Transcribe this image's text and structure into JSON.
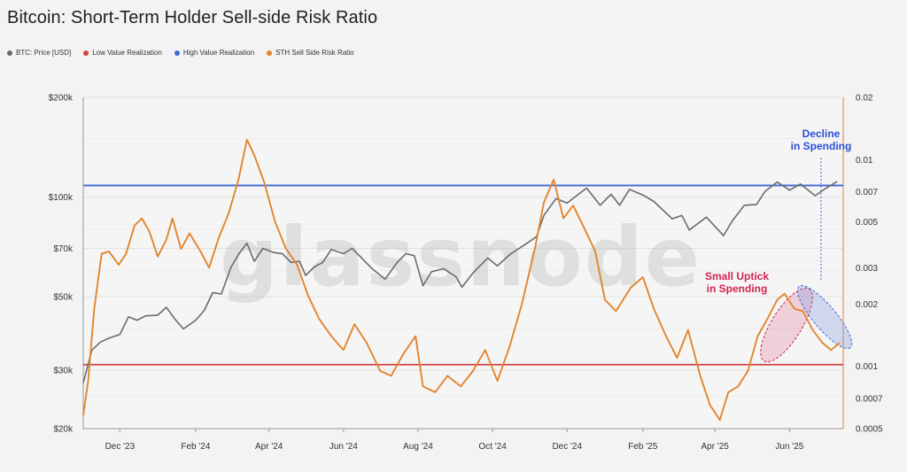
{
  "chart_data": {
    "type": "line",
    "title": "Bitcoin: Short-Term Holder Sell-side Risk Ratio",
    "legend": [
      {
        "name": "BTC: Price [USD]",
        "color": "#6b6b6b"
      },
      {
        "name": "Low Value Realization",
        "color": "#d24242"
      },
      {
        "name": "High Value Realization",
        "color": "#3f67d4"
      },
      {
        "name": "STH Sell Side Risk Ratio",
        "color": "#e3852d"
      }
    ],
    "legend_placement": "top-left",
    "watermark": "glassnode",
    "x_axis": {
      "start": "2023-11-01",
      "end": "2025-07-15",
      "ticks": [
        {
          "date": "2023-12-01",
          "label": "Dec '23"
        },
        {
          "date": "2024-02-01",
          "label": "Feb '24"
        },
        {
          "date": "2024-04-01",
          "label": "Apr '24"
        },
        {
          "date": "2024-06-01",
          "label": "Jun '24"
        },
        {
          "date": "2024-08-01",
          "label": "Aug '24"
        },
        {
          "date": "2024-10-01",
          "label": "Oct '24"
        },
        {
          "date": "2024-12-01",
          "label": "Dec '24"
        },
        {
          "date": "2025-02-01",
          "label": "Feb '25"
        },
        {
          "date": "2025-04-01",
          "label": "Apr '25"
        },
        {
          "date": "2025-06-01",
          "label": "Jun '25"
        }
      ]
    },
    "y_left": {
      "scale": "log",
      "min": 20000,
      "max": 200000,
      "ticks": [
        {
          "value": 20000,
          "label": "$20k"
        },
        {
          "value": 30000,
          "label": "$30k"
        },
        {
          "value": 50000,
          "label": "$50k"
        },
        {
          "value": 70000,
          "label": "$70k"
        },
        {
          "value": 100000,
          "label": "$100k"
        },
        {
          "value": 200000,
          "label": "$200k"
        }
      ]
    },
    "y_right": {
      "scale": "log",
      "min": 0.0005,
      "max": 0.02,
      "ticks": [
        {
          "value": 0.0005,
          "label": "0.0005"
        },
        {
          "value": 0.0007,
          "label": "0.0007"
        },
        {
          "value": 0.001,
          "label": "0.001"
        },
        {
          "value": 0.002,
          "label": "0.002"
        },
        {
          "value": 0.003,
          "label": "0.003"
        },
        {
          "value": 0.005,
          "label": "0.005"
        },
        {
          "value": 0.007,
          "label": "0.007"
        },
        {
          "value": 0.01,
          "label": "0.01"
        },
        {
          "value": 0.02,
          "label": "0.02"
        }
      ]
    },
    "thresholds": [
      {
        "name": "High Value Realization",
        "axis": "right",
        "value": 0.0075,
        "color": "#3f67d4"
      },
      {
        "name": "Low Value Realization",
        "axis": "right",
        "value": 0.00102,
        "color": "#d24242"
      }
    ],
    "series": [
      {
        "name": "BTC: Price [USD]",
        "axis": "left",
        "color": "#6b6b6b",
        "points": [
          [
            "2023-11-01",
            27500
          ],
          [
            "2023-11-08",
            34500
          ],
          [
            "2023-11-15",
            36500
          ],
          [
            "2023-11-22",
            37500
          ],
          [
            "2023-12-01",
            38500
          ],
          [
            "2023-12-08",
            43500
          ],
          [
            "2023-12-15",
            42500
          ],
          [
            "2023-12-22",
            43800
          ],
          [
            "2024-01-01",
            44000
          ],
          [
            "2024-01-08",
            46500
          ],
          [
            "2024-01-15",
            42800
          ],
          [
            "2024-01-22",
            40000
          ],
          [
            "2024-02-01",
            42500
          ],
          [
            "2024-02-08",
            45500
          ],
          [
            "2024-02-15",
            51500
          ],
          [
            "2024-02-22",
            51000
          ],
          [
            "2024-03-01",
            61500
          ],
          [
            "2024-03-08",
            68000
          ],
          [
            "2024-03-14",
            72500
          ],
          [
            "2024-03-20",
            64000
          ],
          [
            "2024-03-27",
            70000
          ],
          [
            "2024-04-05",
            68000
          ],
          [
            "2024-04-12",
            67500
          ],
          [
            "2024-04-19",
            63500
          ],
          [
            "2024-04-26",
            64000
          ],
          [
            "2024-05-01",
            58000
          ],
          [
            "2024-05-08",
            61500
          ],
          [
            "2024-05-15",
            63500
          ],
          [
            "2024-05-22",
            69500
          ],
          [
            "2024-06-01",
            67500
          ],
          [
            "2024-06-08",
            70000
          ],
          [
            "2024-06-15",
            66000
          ],
          [
            "2024-06-24",
            61000
          ],
          [
            "2024-07-05",
            56500
          ],
          [
            "2024-07-15",
            63500
          ],
          [
            "2024-07-22",
            67500
          ],
          [
            "2024-07-29",
            66500
          ],
          [
            "2024-08-05",
            54000
          ],
          [
            "2024-08-12",
            59500
          ],
          [
            "2024-08-22",
            60800
          ],
          [
            "2024-09-01",
            57500
          ],
          [
            "2024-09-06",
            53500
          ],
          [
            "2024-09-15",
            59000
          ],
          [
            "2024-09-27",
            65500
          ],
          [
            "2024-10-05",
            62000
          ],
          [
            "2024-10-15",
            67000
          ],
          [
            "2024-10-29",
            72500
          ],
          [
            "2024-11-06",
            76000
          ],
          [
            "2024-11-12",
            88000
          ],
          [
            "2024-11-22",
            99000
          ],
          [
            "2024-12-01",
            96000
          ],
          [
            "2024-12-08",
            100500
          ],
          [
            "2024-12-17",
            106500
          ],
          [
            "2024-12-28",
            94500
          ],
          [
            "2025-01-06",
            102000
          ],
          [
            "2025-01-13",
            94500
          ],
          [
            "2025-01-21",
            105500
          ],
          [
            "2025-02-01",
            101500
          ],
          [
            "2025-02-10",
            97000
          ],
          [
            "2025-02-25",
            86000
          ],
          [
            "2025-03-05",
            88000
          ],
          [
            "2025-03-11",
            79500
          ],
          [
            "2025-03-25",
            87000
          ],
          [
            "2025-04-08",
            76500
          ],
          [
            "2025-04-15",
            84500
          ],
          [
            "2025-04-25",
            94500
          ],
          [
            "2025-05-05",
            95000
          ],
          [
            "2025-05-12",
            104000
          ],
          [
            "2025-05-22",
            111000
          ],
          [
            "2025-06-01",
            105000
          ],
          [
            "2025-06-10",
            109500
          ],
          [
            "2025-06-22",
            101000
          ],
          [
            "2025-07-01",
            106500
          ],
          [
            "2025-07-10",
            111500
          ]
        ]
      },
      {
        "name": "STH Sell Side Risk Ratio",
        "axis": "right",
        "color": "#e3852d",
        "points": [
          [
            "2023-11-01",
            0.00058
          ],
          [
            "2023-11-05",
            0.00085
          ],
          [
            "2023-11-10",
            0.0019
          ],
          [
            "2023-11-16",
            0.0035
          ],
          [
            "2023-11-22",
            0.0036
          ],
          [
            "2023-11-30",
            0.0031
          ],
          [
            "2023-12-06",
            0.0035
          ],
          [
            "2023-12-13",
            0.0048
          ],
          [
            "2023-12-19",
            0.0052
          ],
          [
            "2023-12-25",
            0.0045
          ],
          [
            "2024-01-01",
            0.0034
          ],
          [
            "2024-01-08",
            0.0041
          ],
          [
            "2024-01-13",
            0.0052
          ],
          [
            "2024-01-20",
            0.0037
          ],
          [
            "2024-01-27",
            0.0044
          ],
          [
            "2024-02-05",
            0.0036
          ],
          [
            "2024-02-12",
            0.003
          ],
          [
            "2024-02-20",
            0.0042
          ],
          [
            "2024-02-28",
            0.0055
          ],
          [
            "2024-03-07",
            0.008
          ],
          [
            "2024-03-14",
            0.0125
          ],
          [
            "2024-03-20",
            0.0105
          ],
          [
            "2024-03-28",
            0.0078
          ],
          [
            "2024-04-06",
            0.005
          ],
          [
            "2024-04-15",
            0.0037
          ],
          [
            "2024-04-24",
            0.0031
          ],
          [
            "2024-05-03",
            0.0022
          ],
          [
            "2024-05-12",
            0.0017
          ],
          [
            "2024-05-22",
            0.0014
          ],
          [
            "2024-06-01",
            0.0012
          ],
          [
            "2024-06-10",
            0.0016
          ],
          [
            "2024-06-20",
            0.0013
          ],
          [
            "2024-07-01",
            0.00095
          ],
          [
            "2024-07-10",
            0.0009
          ],
          [
            "2024-07-20",
            0.00115
          ],
          [
            "2024-07-30",
            0.0014
          ],
          [
            "2024-08-05",
            0.0008
          ],
          [
            "2024-08-15",
            0.00075
          ],
          [
            "2024-08-25",
            0.0009
          ],
          [
            "2024-09-05",
            0.0008
          ],
          [
            "2024-09-15",
            0.00095
          ],
          [
            "2024-09-25",
            0.0012
          ],
          [
            "2024-10-05",
            0.00085
          ],
          [
            "2024-10-15",
            0.00125
          ],
          [
            "2024-10-25",
            0.002
          ],
          [
            "2024-11-05",
            0.0038
          ],
          [
            "2024-11-12",
            0.0062
          ],
          [
            "2024-11-20",
            0.008
          ],
          [
            "2024-11-28",
            0.0052
          ],
          [
            "2024-12-06",
            0.006
          ],
          [
            "2024-12-14",
            0.0048
          ],
          [
            "2024-12-24",
            0.0036
          ],
          [
            "2025-01-01",
            0.0021
          ],
          [
            "2025-01-10",
            0.00185
          ],
          [
            "2025-01-22",
            0.0024
          ],
          [
            "2025-02-01",
            0.0027
          ],
          [
            "2025-02-10",
            0.0019
          ],
          [
            "2025-02-20",
            0.0014
          ],
          [
            "2025-03-01",
            0.0011
          ],
          [
            "2025-03-10",
            0.0015
          ],
          [
            "2025-03-20",
            0.0009
          ],
          [
            "2025-03-28",
            0.00065
          ],
          [
            "2025-04-05",
            0.00055
          ],
          [
            "2025-04-12",
            0.00075
          ],
          [
            "2025-04-20",
            0.0008
          ],
          [
            "2025-04-28",
            0.00095
          ],
          [
            "2025-05-06",
            0.0014
          ],
          [
            "2025-05-14",
            0.0017
          ],
          [
            "2025-05-22",
            0.0021
          ],
          [
            "2025-05-28",
            0.00225
          ],
          [
            "2025-06-05",
            0.0019
          ],
          [
            "2025-06-12",
            0.00185
          ],
          [
            "2025-06-20",
            0.0015
          ],
          [
            "2025-06-28",
            0.0013
          ],
          [
            "2025-07-05",
            0.0012
          ],
          [
            "2025-07-12",
            0.0013
          ]
        ]
      }
    ],
    "annotations": [
      {
        "lines": [
          "Decline",
          "in Spending"
        ],
        "color": "#2d4fd6"
      },
      {
        "lines": [
          "Small Uptick",
          "in Spending"
        ],
        "color": "#d2254f"
      }
    ]
  }
}
